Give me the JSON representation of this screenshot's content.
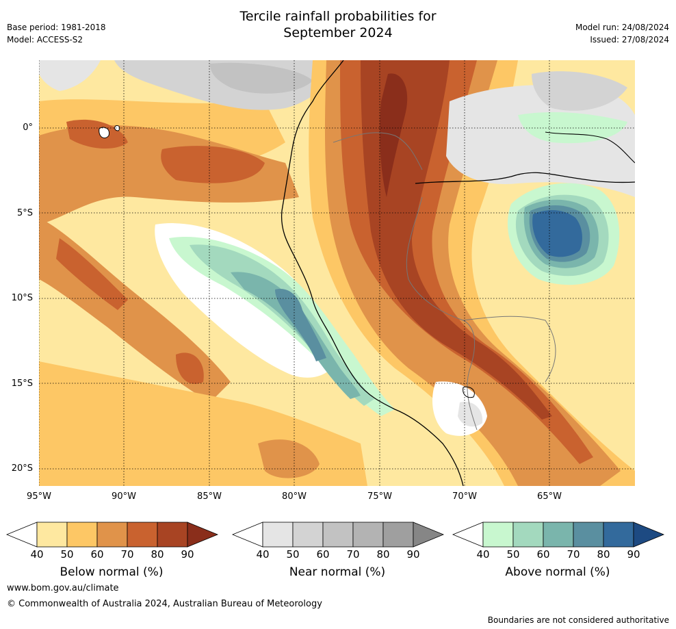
{
  "title_line1": "Tercile rainfall probabilities for",
  "title_line2": "September 2024",
  "base_period": "Base period: 1981-2018",
  "model": "Model: ACCESS-S2",
  "model_run": "Model run: 24/08/2024",
  "issued": "Issued: 27/08/2024",
  "lat_labels": [
    "0°",
    "5°S",
    "10°S",
    "15°S",
    "20°S"
  ],
  "lon_labels": [
    "95°W",
    "90°W",
    "85°W",
    "80°W",
    "75°W",
    "70°W",
    "65°W"
  ],
  "colorbars": [
    {
      "label": "Below normal (%)",
      "ticks": [
        "40",
        "50",
        "60",
        "70",
        "80",
        "90"
      ],
      "colors": [
        "#ffffff",
        "#fee8a0",
        "#fdc765",
        "#e0934a",
        "#c9622f",
        "#a84423",
        "#8a2e1b"
      ]
    },
    {
      "label": "Near normal (%)",
      "ticks": [
        "40",
        "50",
        "60",
        "70",
        "80",
        "90"
      ],
      "colors": [
        "#ffffff",
        "#e5e5e5",
        "#d3d3d3",
        "#c2c2c2",
        "#b3b3b3",
        "#9f9f9f",
        "#868686"
      ]
    },
    {
      "label": "Above normal (%)",
      "ticks": [
        "40",
        "50",
        "60",
        "70",
        "80",
        "90"
      ],
      "colors": [
        "#ffffff",
        "#c8f7cf",
        "#a3d9be",
        "#7ab5ac",
        "#5a8fa0",
        "#336a9c",
        "#1d4a82"
      ]
    }
  ],
  "footer_url": "www.bom.gov.au/climate",
  "copyright": "© Commonwealth of Australia 2024, Australian Bureau of Meteorology",
  "disclaimer": "Boundaries are not considered authoritative"
}
